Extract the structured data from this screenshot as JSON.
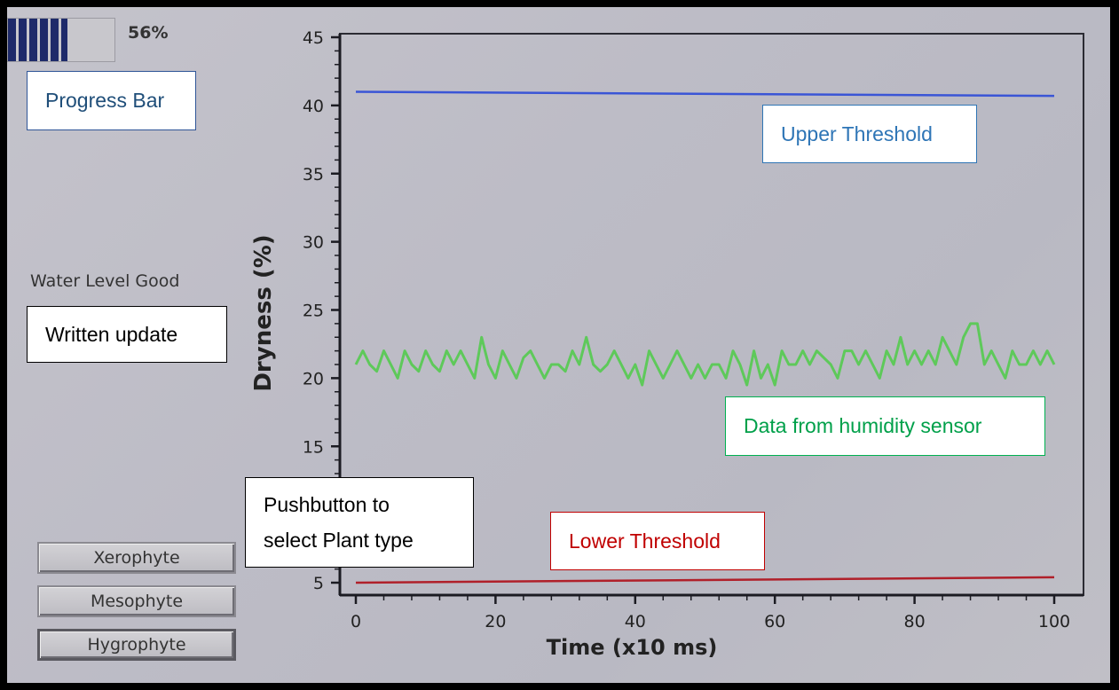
{
  "app": {
    "progress_percent_label": "56%",
    "progress_fraction": 0.56,
    "status_text": "Water Level Good",
    "plant_buttons": [
      {
        "label": "Xerophyte"
      },
      {
        "label": "Mesophyte"
      },
      {
        "label": "Hygrophyte"
      }
    ]
  },
  "annotations": {
    "progress_bar": "Progress Bar",
    "written_update": "Written update",
    "pushbutton_line1": "Pushbutton to",
    "pushbutton_line2": "select Plant type",
    "upper_threshold": "Upper Threshold",
    "data_sensor": "Data from humidity sensor",
    "lower_threshold": "Lower Threshold"
  },
  "colors": {
    "upper_line": "#3a55d6",
    "lower_line": "#b0202a",
    "sensor_line": "#5ec95a",
    "note_blue": "#2a6aa8",
    "note_green": "#1aa64a",
    "note_red": "#b01c22"
  },
  "chart_data": {
    "type": "line",
    "xlabel": "Time (x10 ms)",
    "ylabel": "Dryness (%)",
    "xlim": [
      0,
      100
    ],
    "ylim": [
      5,
      45
    ],
    "x_ticks": [
      0,
      20,
      40,
      60,
      80,
      100
    ],
    "y_ticks": [
      5,
      15,
      20,
      25,
      30,
      35,
      40,
      45
    ],
    "series": [
      {
        "role": "upper",
        "x": [
          0,
          100
        ],
        "y": [
          41,
          40.7
        ]
      },
      {
        "role": "lower",
        "x": [
          0,
          100
        ],
        "y": [
          5,
          5.4
        ]
      },
      {
        "role": "sensor",
        "x": [
          0,
          1,
          2,
          3,
          4,
          5,
          6,
          7,
          8,
          9,
          10,
          11,
          12,
          13,
          14,
          15,
          16,
          17,
          18,
          19,
          20,
          21,
          22,
          23,
          24,
          25,
          26,
          27,
          28,
          29,
          30,
          31,
          32,
          33,
          34,
          35,
          36,
          37,
          38,
          39,
          40,
          41,
          42,
          43,
          44,
          45,
          46,
          47,
          48,
          49,
          50,
          51,
          52,
          53,
          54,
          55,
          56,
          57,
          58,
          59,
          60,
          61,
          62,
          63,
          64,
          65,
          66,
          67,
          68,
          69,
          70,
          71,
          72,
          73,
          74,
          75,
          76,
          77,
          78,
          79,
          80,
          81,
          82,
          83,
          84,
          85,
          86,
          87,
          88,
          89,
          90,
          91,
          92,
          93,
          94,
          95,
          96,
          97,
          98,
          99,
          100
        ],
        "y": [
          21,
          22,
          21,
          20.5,
          22,
          21,
          20,
          22,
          21,
          20.5,
          22,
          21,
          20.5,
          22,
          21,
          22,
          21,
          20,
          23,
          21,
          20,
          22,
          21,
          20,
          21.5,
          22,
          21,
          20,
          21,
          21,
          20.5,
          22,
          21,
          23,
          21,
          20.5,
          21,
          22,
          21,
          20,
          21,
          19.5,
          22,
          21,
          20,
          21,
          22,
          21,
          20,
          21,
          20,
          21,
          21,
          20,
          22,
          21,
          19.5,
          22,
          20,
          21,
          19.5,
          22,
          21,
          21,
          22,
          21,
          22,
          21.5,
          21,
          20,
          22,
          22,
          21,
          22,
          21,
          20,
          22,
          21,
          23,
          21,
          22,
          21,
          22,
          21,
          23,
          22,
          21,
          23,
          24,
          24,
          21,
          22,
          21,
          20,
          22,
          21,
          21,
          22,
          21,
          22,
          21
        ]
      }
    ]
  }
}
